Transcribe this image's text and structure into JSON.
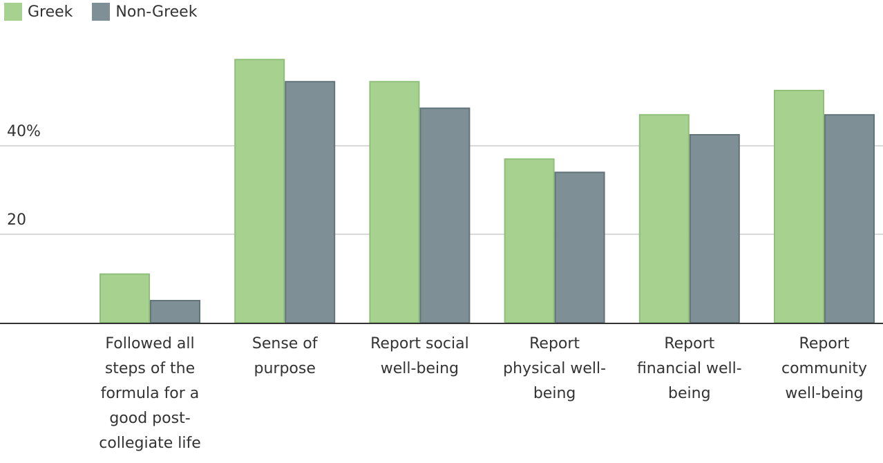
{
  "chart_data": {
    "type": "bar",
    "title": "",
    "xlabel": "",
    "ylabel": "",
    "ylim": [
      0,
      64
    ],
    "yticks": [
      {
        "value": 20,
        "label": "20"
      },
      {
        "value": 40,
        "label": "40%"
      }
    ],
    "grid": true,
    "legend_position": "top-left",
    "categories": [
      [
        "Followed all",
        "steps of the",
        "formula for a",
        "good post-",
        "collegiate life"
      ],
      [
        "Sense of",
        "purpose"
      ],
      [
        "Report social",
        "well-being"
      ],
      [
        "Report",
        "physical well-",
        "being"
      ],
      [
        "Report",
        "financial well-",
        "being"
      ],
      [
        "Report",
        "community",
        "well-being"
      ]
    ],
    "series": [
      {
        "name": "Greek",
        "color": "#a7d18f",
        "border": "#8fbf78",
        "values": [
          11,
          59.5,
          54.5,
          37,
          47,
          52.5
        ]
      },
      {
        "name": "Non-Greek",
        "color": "#7e8f96",
        "border": "#62737a",
        "values": [
          5,
          54.5,
          48.5,
          34,
          42.5,
          47
        ]
      }
    ]
  }
}
